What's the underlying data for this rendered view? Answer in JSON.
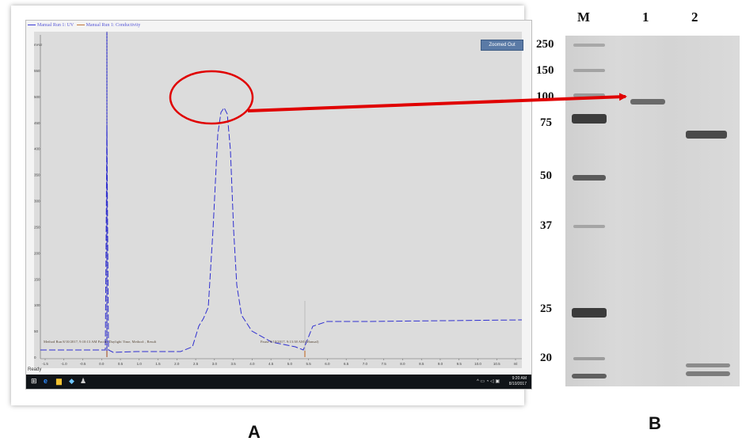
{
  "panel_a": {
    "letter": "A",
    "legend": [
      "Manual Run 1: UV",
      "Manual Run 1: Conductivity"
    ],
    "zoom_button": "Zoomed Out",
    "status": "Ready",
    "annotation_left": "Method Run 8/10/2017, 9:10:13 AM Pacific Daylight Time, Method: , Result",
    "annotation_right": "Pause 8/10/2017, 9:13:38 AM (Manual)",
    "x_ticks": [
      "-1.5",
      "-1.0",
      "-0.5",
      "0.0",
      "0.5",
      "1.0",
      "1.5",
      "2.0",
      "2.5",
      "3.0",
      "3.5",
      "4.0",
      "4.5",
      "5.0",
      "5.5",
      "6.0",
      "6.5",
      "7.0",
      "7.5",
      "8.0",
      "8.5",
      "9.0",
      "9.5",
      "10.0",
      "10.5",
      "ml"
    ],
    "y_ticks": [
      "0",
      "50",
      "100",
      "150",
      "200",
      "250",
      "300",
      "350",
      "400",
      "450",
      "500",
      "550",
      "mAU"
    ],
    "tray_time": "9:20 AM",
    "tray_date": "8/10/2017",
    "colors": {
      "uv": "#2f2fd0",
      "conductivity": "#c0763a",
      "circle": "#e00000",
      "arrow": "#e00000"
    }
  },
  "panel_b": {
    "letter": "B",
    "lane_labels": [
      "M",
      "1",
      "2"
    ],
    "mw_markers": [
      "250",
      "150",
      "100",
      "75",
      "50",
      "37",
      "25",
      "20"
    ]
  }
}
